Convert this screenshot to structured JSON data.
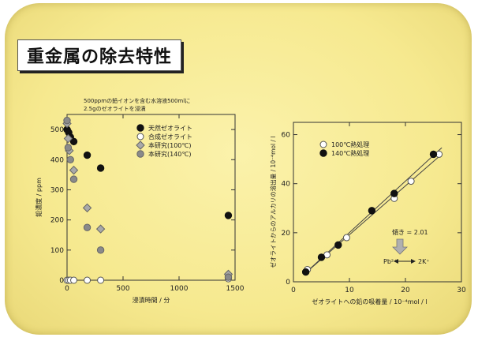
{
  "slide": {
    "title": "重金属の除去特性",
    "bg_color": "#f7ec99"
  },
  "chart_data": [
    {
      "type": "scatter",
      "annotation": [
        "500ppmの鉛イオンを含む水溶液500mlに",
        "2.5gのゼオライトを浸漬"
      ],
      "xlabel": "浸漬時間 / 分",
      "ylabel": "鉛濃度 / ppm",
      "xlim": [
        0,
        1500
      ],
      "ylim": [
        0,
        550
      ],
      "xticks": [
        0,
        500,
        1000,
        1500
      ],
      "yticks": [
        0,
        100,
        200,
        300,
        400,
        500
      ],
      "legend_position": "top-right",
      "series": [
        {
          "name": "天然ゼオライト",
          "marker": "filled-circle",
          "x": [
            0,
            15,
            30,
            60,
            180,
            300,
            1440
          ],
          "y": [
            500,
            490,
            475,
            460,
            415,
            372,
            215
          ]
        },
        {
          "name": "合成ゼオライト",
          "marker": "open-circle",
          "x": [
            0,
            15,
            30,
            60,
            180,
            300,
            1440
          ],
          "y": [
            0,
            0,
            0,
            0,
            0,
            0,
            5
          ]
        },
        {
          "name": "本研究(100℃)",
          "marker": "diamond",
          "x": [
            0,
            10,
            20,
            60,
            180,
            300,
            1440
          ],
          "y": [
            520,
            470,
            430,
            365,
            240,
            170,
            20
          ]
        },
        {
          "name": "本研究(140℃)",
          "marker": "gray-circle",
          "x": [
            0,
            10,
            30,
            60,
            180,
            300,
            1440
          ],
          "y": [
            530,
            440,
            400,
            335,
            175,
            100,
            10
          ]
        }
      ]
    },
    {
      "type": "scatter",
      "xlabel": "ゼオライトへの鉛の吸着量 / 10⁻⁴mol / l",
      "ylabel": "ゼオライトからのアルカリの溶出量 / 10⁻⁴mol / l",
      "xlim": [
        0,
        30
      ],
      "ylim": [
        0,
        65
      ],
      "xticks": [
        0,
        10,
        20,
        30
      ],
      "yticks": [
        0,
        20,
        40,
        60
      ],
      "legend_position": "top-left",
      "annotation": {
        "slope": "傾き = 2.01",
        "reaction_left": "Pb²⁺",
        "reaction_right": "2K⁺"
      },
      "series": [
        {
          "name": "100℃熱処理",
          "marker": "open-circle",
          "x": [
            2.5,
            6,
            9.5,
            18,
            21,
            26
          ],
          "y": [
            5,
            11,
            18,
            34,
            41,
            52
          ]
        },
        {
          "name": "140℃熱処理",
          "marker": "filled-circle",
          "x": [
            2.2,
            5,
            8,
            14,
            18,
            25
          ],
          "y": [
            4,
            10,
            15,
            29,
            36,
            52
          ]
        }
      ]
    }
  ]
}
